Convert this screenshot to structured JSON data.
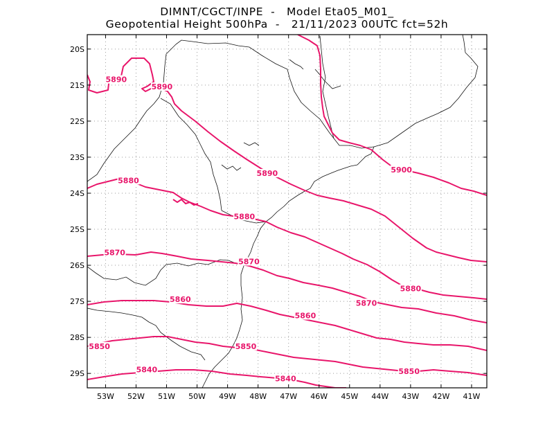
{
  "title_line1": "DIMNT/CGCT/INPE  -   Model Eta05_M01_",
  "title_line2": "Geopotential Height 500hPa  -   21/11/2023 00UTC fct=52h",
  "map": {
    "lon_range": [
      -53.6,
      -40.5
    ],
    "lat_range": [
      -29.4,
      -19.6
    ],
    "lat_ticks": [
      "20S",
      "21S",
      "22S",
      "23S",
      "24S",
      "25S",
      "26S",
      "27S",
      "28S",
      "29S"
    ],
    "lon_ticks": [
      "53W",
      "52W",
      "51W",
      "50W",
      "49W",
      "48W",
      "47W",
      "46W",
      "45W",
      "44W",
      "43W",
      "42W",
      "41W"
    ],
    "contour_color": "#e8156a",
    "contour_labels": [
      {
        "text": "5890",
        "lon": -52.65,
        "lat": -20.9
      },
      {
        "text": "5890",
        "lon": -51.15,
        "lat": -21.1
      },
      {
        "text": "5890",
        "lon": -47.7,
        "lat": -23.5
      },
      {
        "text": "5900",
        "lon": -43.3,
        "lat": -23.4
      },
      {
        "text": "5880",
        "lon": -52.25,
        "lat": -23.7
      },
      {
        "text": "5880",
        "lon": -48.45,
        "lat": -24.7
      },
      {
        "text": "5880",
        "lon": -43.0,
        "lat": -26.7
      },
      {
        "text": "5870",
        "lon": -52.7,
        "lat": -25.7
      },
      {
        "text": "5870",
        "lon": -48.3,
        "lat": -25.95
      },
      {
        "text": "5870",
        "lon": -44.45,
        "lat": -27.1
      },
      {
        "text": "5860",
        "lon": -50.55,
        "lat": -27.0
      },
      {
        "text": "5860",
        "lon": -46.45,
        "lat": -27.45
      },
      {
        "text": "5850",
        "lon": -53.2,
        "lat": -28.3
      },
      {
        "text": "5850",
        "lon": -48.4,
        "lat": -28.3
      },
      {
        "text": "5850",
        "lon": -43.05,
        "lat": -29.0
      },
      {
        "text": "5840",
        "lon": -51.65,
        "lat": -28.95
      },
      {
        "text": "5840",
        "lon": -47.1,
        "lat": -29.2
      }
    ]
  }
}
